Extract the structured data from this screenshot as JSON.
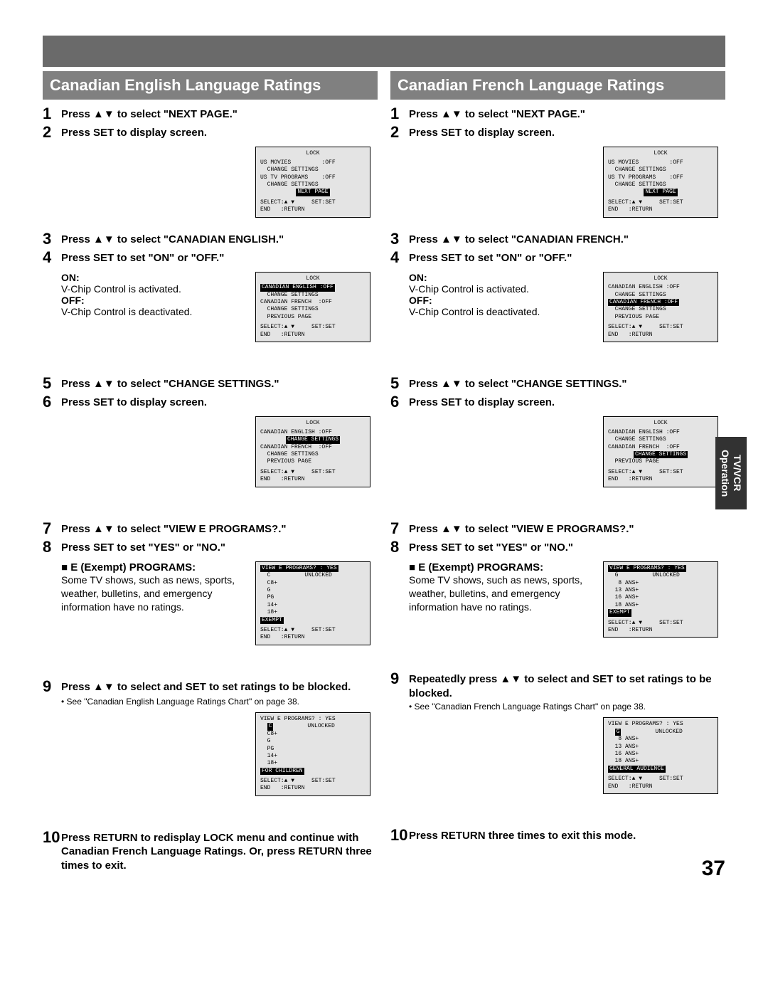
{
  "page_number": "37",
  "side_tab": {
    "line1": "TV/VCR",
    "line2": "Operation"
  },
  "left": {
    "header": "Canadian English Language Ratings",
    "steps": {
      "s1": "Press ▲▼ to select \"NEXT PAGE.\"",
      "s2": "Press SET to display screen.",
      "s3": "Press ▲▼ to select \"CANADIAN ENGLISH.\"",
      "s4": "Press SET to set \"ON\" or \"OFF.\"",
      "s4_on": "ON:",
      "s4_on_desc": "V-Chip Control is activated.",
      "s4_off": "OFF:",
      "s4_off_desc": "V-Chip Control is deactivated.",
      "s5": "Press ▲▼ to select \"CHANGE SETTINGS.\"",
      "s6": "Press SET to display screen.",
      "s7": "Press ▲▼ to select \"VIEW E PROGRAMS?.\"",
      "s8": "Press SET to set \"YES\" or \"NO.\"",
      "exempt_head": "■ E (Exempt) PROGRAMS:",
      "exempt_body": "Some TV shows, such as news, sports, weather, bulletins, and emergency information have no ratings.",
      "s9": "Press ▲▼ to select and SET to set ratings to be blocked.",
      "s9_note": "• See \"Canadian English Language Ratings Chart\" on page 38.",
      "s10": "Press RETURN to redisplay LOCK menu and continue with Canadian French Language Ratings. Or, press RETURN three times to exit."
    },
    "screens": {
      "sc1": {
        "title": "LOCK",
        "lines": [
          {
            "t": "US MOVIES         :OFF"
          },
          {
            "t": "  CHANGE SETTINGS"
          },
          {
            "t": "US TV PROGRAMS    :OFF"
          },
          {
            "t": "  CHANGE SETTINGS"
          },
          {
            "t": "NEXT PAGE",
            "inv": true,
            "center": true
          }
        ],
        "footer": [
          "SELECT:▲ ▼     SET:SET",
          "END   :RETURN"
        ]
      },
      "sc2": {
        "title": "LOCK",
        "lines": [
          {
            "t": "CANADIAN ENGLISH :OFF",
            "inv": true
          },
          {
            "t": "  CHANGE SETTINGS"
          },
          {
            "t": "CANADIAN FRENCH  :OFF"
          },
          {
            "t": "  CHANGE SETTINGS"
          },
          {
            "t": "  PREVIOUS PAGE"
          }
        ],
        "footer": [
          "SELECT:▲ ▼     SET:SET",
          "END   :RETURN"
        ]
      },
      "sc3": {
        "title": "LOCK",
        "lines": [
          {
            "t": "CANADIAN ENGLISH :OFF"
          },
          {
            "t": "CHANGE SETTINGS",
            "inv": true,
            "center": true
          },
          {
            "t": "CANADIAN FRENCH  :OFF"
          },
          {
            "t": "  CHANGE SETTINGS"
          },
          {
            "t": "  PREVIOUS PAGE"
          }
        ],
        "footer": [
          "SELECT:▲ ▼     SET:SET",
          "END   :RETURN"
        ]
      },
      "sc4": {
        "lines": [
          {
            "t": "VIEW E PROGRAMS? : YES",
            "inv": true
          },
          {
            "t": "  C          UNLOCKED"
          },
          {
            "t": "  C8+"
          },
          {
            "t": "  G"
          },
          {
            "t": "  PG"
          },
          {
            "t": "  14+"
          },
          {
            "t": "  18+"
          },
          {
            "t": "EXEMPT",
            "inv": true
          }
        ],
        "footer": [
          "SELECT:▲ ▼     SET:SET",
          "END   :RETURN"
        ]
      },
      "sc5": {
        "lines": [
          {
            "t": "VIEW E PROGRAMS? : YES"
          },
          {
            "pre": "  ",
            "inv_t": "C",
            "post": "          UNLOCKED"
          },
          {
            "t": "  C8+"
          },
          {
            "t": "  G"
          },
          {
            "t": "  PG"
          },
          {
            "t": "  14+"
          },
          {
            "t": "  18+"
          },
          {
            "t": "FOR CHILDREN",
            "inv": true
          }
        ],
        "footer": [
          "SELECT:▲ ▼     SET:SET",
          "END   :RETURN"
        ]
      }
    }
  },
  "right": {
    "header": "Canadian French Language Ratings",
    "steps": {
      "s1": "Press ▲▼ to select \"NEXT PAGE.\"",
      "s2": "Press SET to display screen.",
      "s3": "Press ▲▼ to select \"CANADIAN FRENCH.\"",
      "s4": "Press SET to set \"ON\" or \"OFF.\"",
      "s4_on": "ON:",
      "s4_on_desc": "V-Chip Control is activated.",
      "s4_off": "OFF:",
      "s4_off_desc": "V-Chip Control is deactivated.",
      "s5": "Press ▲▼ to select \"CHANGE SETTINGS.\"",
      "s6": "Press SET to display screen.",
      "s7": "Press ▲▼ to select \"VIEW E PROGRAMS?.\"",
      "s8": "Press SET to set \"YES\" or \"NO.\"",
      "exempt_head": "■ E (Exempt) PROGRAMS:",
      "exempt_body": "Some TV shows, such as news, sports, weather, bulletins, and emergency information have no ratings.",
      "s9": "Repeatedly press ▲▼ to select and SET to set ratings to be blocked.",
      "s9_note": "• See \"Canadian French Language Ratings Chart\" on page 38.",
      "s10": "Press RETURN three times to exit this mode."
    },
    "screens": {
      "sc1": {
        "title": "LOCK",
        "lines": [
          {
            "t": "US MOVIES         :OFF"
          },
          {
            "t": "  CHANGE SETTINGS"
          },
          {
            "t": "US TV PROGRAMS    :OFF"
          },
          {
            "t": "  CHANGE SETTINGS"
          },
          {
            "t": "NEXT PAGE",
            "inv": true,
            "center": true
          }
        ],
        "footer": [
          "SELECT:▲ ▼     SET:SET",
          "END   :RETURN"
        ]
      },
      "sc2": {
        "title": "LOCK",
        "lines": [
          {
            "t": "CANADIAN ENGLISH :OFF"
          },
          {
            "t": "  CHANGE SETTINGS"
          },
          {
            "t": "CANADIAN FRENCH :OFF",
            "inv": true
          },
          {
            "t": "  CHANGE SETTINGS"
          },
          {
            "t": "  PREVIOUS PAGE"
          }
        ],
        "footer": [
          "SELECT:▲ ▼     SET:SET",
          "END   :RETURN"
        ]
      },
      "sc3": {
        "title": "LOCK",
        "lines": [
          {
            "t": "CANADIAN ENGLISH :OFF"
          },
          {
            "t": "  CHANGE SETTINGS"
          },
          {
            "t": "CANADIAN FRENCH  :OFF"
          },
          {
            "t": "CHANGE SETTINGS",
            "inv": true,
            "center": true
          },
          {
            "t": "  PREVIOUS PAGE"
          }
        ],
        "footer": [
          "SELECT:▲ ▼     SET:SET",
          "END   :RETURN"
        ]
      },
      "sc4": {
        "lines": [
          {
            "t": "VIEW E PROGRAMS? : YES",
            "inv": true
          },
          {
            "t": "  G          UNLOCKED"
          },
          {
            "t": "   8 ANS+"
          },
          {
            "t": "  13 ANS+"
          },
          {
            "t": "  16 ANS+"
          },
          {
            "t": "  18 ANS+"
          },
          {
            "t": "EXEMPT",
            "inv": true
          }
        ],
        "footer": [
          "SELECT:▲ ▼     SET:SET",
          "END   :RETURN"
        ]
      },
      "sc5": {
        "lines": [
          {
            "t": "VIEW E PROGRAMS? : YES"
          },
          {
            "pre": "  ",
            "inv_t": "G",
            "post": "          UNLOCKED"
          },
          {
            "t": "   8 ANS+"
          },
          {
            "t": "  13 ANS+"
          },
          {
            "t": "  16 ANS+"
          },
          {
            "t": "  18 ANS+"
          },
          {
            "t": "GENERAL AUDIENCE",
            "inv": true
          }
        ],
        "footer": [
          "SELECT:▲ ▼     SET:SET",
          "END   :RETURN"
        ]
      }
    }
  }
}
